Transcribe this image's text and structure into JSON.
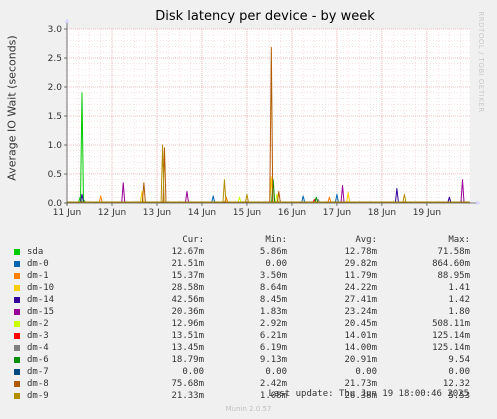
{
  "chart_data": {
    "type": "line",
    "title": "Disk latency per device - by week",
    "xlabel": "",
    "ylabel": "Average IO Wait (seconds)",
    "ylim": [
      0,
      3.0
    ],
    "yticks": [
      "0.0",
      "0.5",
      "1.0",
      "1.5",
      "2.0",
      "2.5",
      "3.0"
    ],
    "x_range": [
      "2025-06-11 00:00",
      "2025-06-19 23:00"
    ],
    "xticks": [
      "11 Jun",
      "12 Jun",
      "13 Jun",
      "14 Jun",
      "15 Jun",
      "16 Jun",
      "17 Jun",
      "18 Jun",
      "19 Jun"
    ],
    "grid": true,
    "legend_position": "bottom",
    "series": [
      {
        "name": "sda",
        "color": "#00cc00",
        "cur": "12.67m",
        "min": "5.86m",
        "avg": "12.78m",
        "max": "71.58m",
        "points": [
          [
            "2025-06-11 07:00",
            0.1
          ],
          [
            "2025-06-11 08:00",
            1.9
          ],
          [
            "2025-06-11 09:00",
            0.05
          ]
        ]
      },
      {
        "name": "dm-0",
        "color": "#0066b3",
        "cur": "21.51m",
        "min": "0.00",
        "avg": "29.82m",
        "max": "864.60m",
        "points": [
          [
            "2025-06-14 06:00",
            0.12
          ],
          [
            "2025-06-16 06:00",
            0.12
          ],
          [
            "2025-06-17 00:00",
            0.15
          ]
        ]
      },
      {
        "name": "dm-1",
        "color": "#ff8000",
        "cur": "15.37m",
        "min": "3.50m",
        "avg": "11.79m",
        "max": "88.95m",
        "points": [
          [
            "2025-06-11 18:00",
            0.12
          ],
          [
            "2025-06-14 13:00",
            0.1
          ],
          [
            "2025-06-16 20:00",
            0.1
          ]
        ]
      },
      {
        "name": "dm-10",
        "color": "#ffcc00",
        "cur": "28.58m",
        "min": "8.64m",
        "avg": "24.22m",
        "max": "1.41",
        "points": [
          [
            "2025-06-12 16:00",
            0.2
          ],
          [
            "2025-06-15 13:00",
            0.45
          ],
          [
            "2025-06-17 06:00",
            0.18
          ]
        ]
      },
      {
        "name": "dm-14",
        "color": "#330099",
        "cur": "42.56m",
        "min": "8.45m",
        "avg": "27.41m",
        "max": "1.42",
        "points": [
          [
            "2025-06-11 08:00",
            0.15
          ],
          [
            "2025-06-18 08:00",
            0.25
          ],
          [
            "2025-06-19 12:00",
            0.1
          ]
        ]
      },
      {
        "name": "dm-15",
        "color": "#990099",
        "cur": "20.36m",
        "min": "1.83m",
        "avg": "23.24m",
        "max": "1.80",
        "points": [
          [
            "2025-06-12 06:00",
            0.35
          ],
          [
            "2025-06-13 16:00",
            0.2
          ],
          [
            "2025-06-17 03:00",
            0.3
          ],
          [
            "2025-06-19 19:00",
            0.4
          ]
        ]
      },
      {
        "name": "dm-2",
        "color": "#ccff00",
        "cur": "12.96m",
        "min": "2.92m",
        "avg": "20.45m",
        "max": "508.11m",
        "points": [
          [
            "2025-06-14 20:00",
            0.1
          ],
          [
            "2025-06-15 16:00",
            0.15
          ]
        ]
      },
      {
        "name": "dm-3",
        "color": "#ff0000",
        "cur": "13.51m",
        "min": "6.21m",
        "avg": "14.01m",
        "max": "125.14m",
        "points": [
          [
            "2025-06-16 12:00",
            0.06
          ]
        ]
      },
      {
        "name": "dm-4",
        "color": "#808080",
        "cur": "13.45m",
        "min": "6.19m",
        "avg": "14.00m",
        "max": "125.14m",
        "points": [
          [
            "2025-06-16 14:00",
            0.06
          ]
        ]
      },
      {
        "name": "dm-6",
        "color": "#008f00",
        "cur": "18.79m",
        "min": "9.13m",
        "avg": "20.91m",
        "max": "9.54",
        "points": [
          [
            "2025-06-15 14:00",
            0.4
          ],
          [
            "2025-06-16 13:00",
            0.1
          ]
        ]
      },
      {
        "name": "dm-7",
        "color": "#00487d",
        "cur": "0.00",
        "min": "0.00",
        "avg": "0.00",
        "max": "0.00",
        "points": []
      },
      {
        "name": "dm-8",
        "color": "#b35a00",
        "cur": "75.68m",
        "min": "2.42m",
        "avg": "21.73m",
        "max": "12.32",
        "points": [
          [
            "2025-06-12 17:00",
            0.35
          ],
          [
            "2025-06-13 04:00",
            0.95
          ],
          [
            "2025-06-15 13:00",
            2.68
          ],
          [
            "2025-06-15 17:00",
            0.2
          ]
        ]
      },
      {
        "name": "dm-9",
        "color": "#b38f00",
        "cur": "21.33m",
        "min": "1.08m",
        "avg": "26.38m",
        "max": "5.53",
        "points": [
          [
            "2025-06-13 03:00",
            1.0
          ],
          [
            "2025-06-14 12:00",
            0.4
          ],
          [
            "2025-06-15 00:00",
            0.15
          ],
          [
            "2025-06-18 12:00",
            0.15
          ]
        ]
      }
    ]
  },
  "legend_headers": {
    "cur": "Cur:",
    "min": "Min:",
    "avg": "Avg:",
    "max": "Max:"
  },
  "watermark": "RRDTOOL / TOBI OETIKER",
  "last_update": "Last update: Thu Jun 19 18:00:46 2025",
  "version": "Munin 2.0.57"
}
